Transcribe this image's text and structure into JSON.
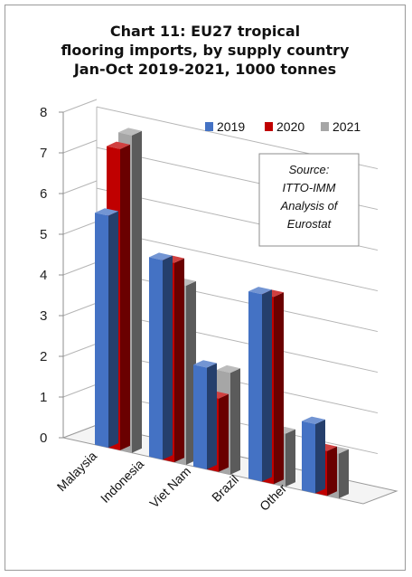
{
  "chart_data": {
    "type": "bar",
    "title_lines": [
      "Chart 11: EU27 tropical",
      "flooring imports, by supply country",
      "Jan-Oct 2019-2021, 1000 tonnes"
    ],
    "categories": [
      "Malaysia",
      "Indonesia",
      "Viet Nam",
      "Brazil",
      "Other"
    ],
    "series": [
      {
        "name": "2019",
        "color": "#4472C4",
        "values": [
          5.7,
          4.9,
          2.5,
          4.6,
          1.7
        ]
      },
      {
        "name": "2020",
        "color": "#C00000",
        "values": [
          7.4,
          4.9,
          1.8,
          4.6,
          1.1
        ]
      },
      {
        "name": "2021",
        "color": "#A6A6A6",
        "values": [
          7.8,
          4.4,
          2.5,
          1.3,
          1.1
        ]
      }
    ],
    "y_ticks": [
      "0",
      "1",
      "2",
      "3",
      "4",
      "5",
      "6",
      "7",
      "8"
    ],
    "ylim": [
      0,
      8
    ],
    "grid": true,
    "legend_position": "top-right",
    "annotation_lines": [
      "Source:",
      "ITTO-IMM",
      "Analysis of",
      "Eurostat"
    ]
  }
}
